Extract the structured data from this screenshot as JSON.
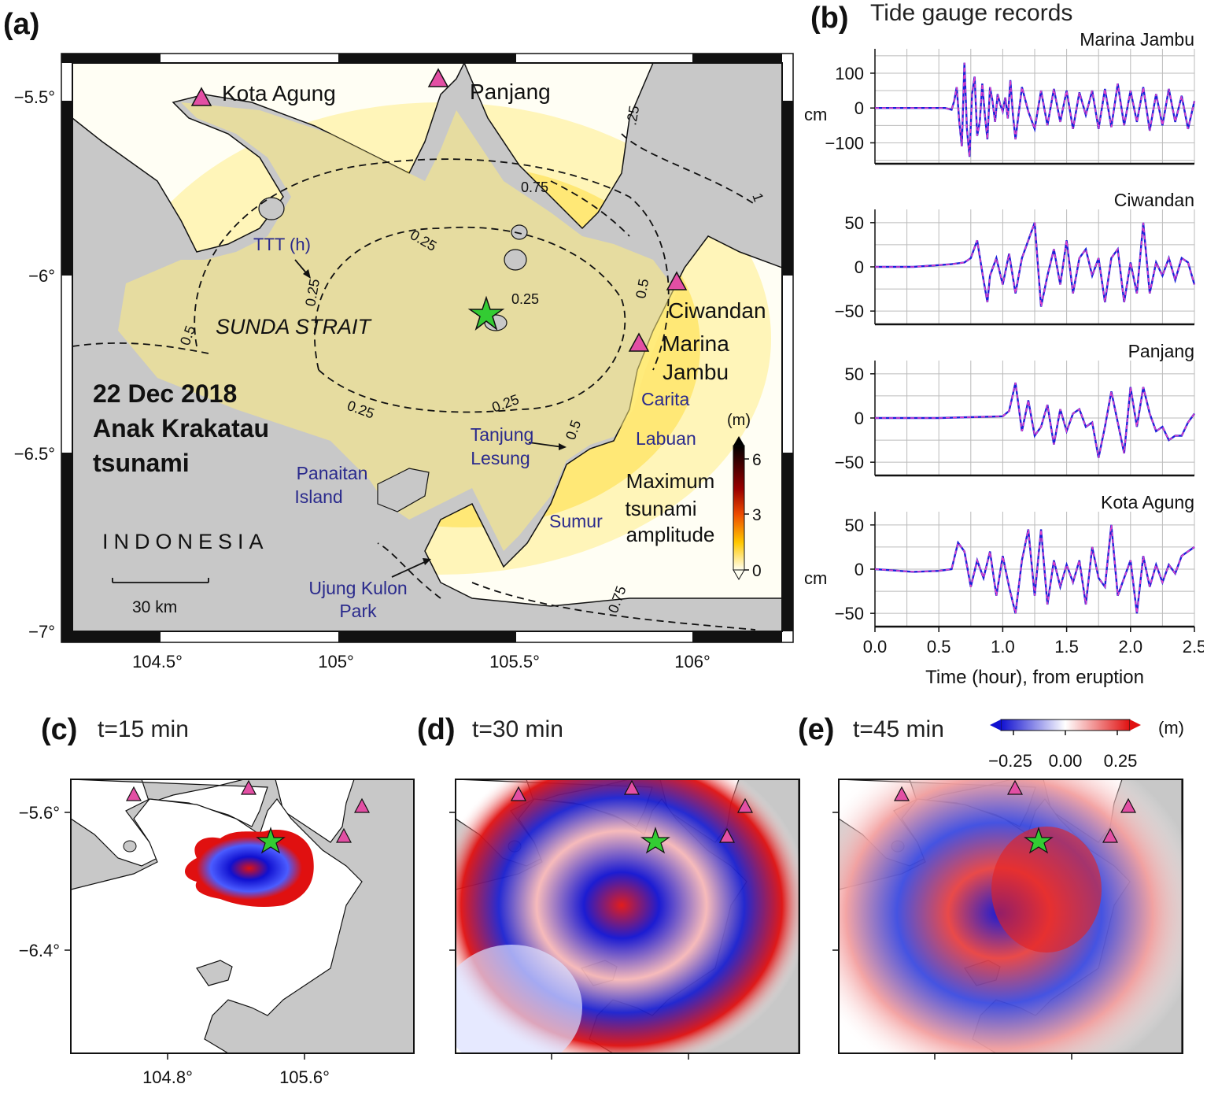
{
  "panel_a": {
    "label": "(a)",
    "title_lines": [
      "22 Dec 2018",
      "Anak Krakatau",
      "tsunami"
    ],
    "region": "SUNDA STRAIT",
    "country": "INDONESIA",
    "ttt_label": "TTT (h)",
    "scale_label": "30 km",
    "contours": [
      "0.25",
      "0.25",
      "0.25",
      "0.25",
      "0.25",
      "0.5",
      "0.5",
      "0.5",
      "0.75",
      "0.75",
      "1",
      ".25"
    ],
    "stations": [
      "Kota Agung",
      "Panjang",
      "Ciwandan",
      "Marina Jambu"
    ],
    "places": [
      "Carita",
      "Labuan",
      "Tanjung Lesung",
      "Panaitan Island",
      "Sumur",
      "Ujung Kulon Park"
    ],
    "colorbar_unit": "(m)",
    "colorbar_ticks": [
      "6",
      "3",
      "0"
    ],
    "colorbar_title": [
      "Maximum",
      "tsunami",
      "amplitude"
    ],
    "lat_ticks": [
      "−5.5°",
      "−6°",
      "−6.5°",
      "−7°"
    ],
    "lon_ticks": [
      "104.5°",
      "105°",
      "105.5°",
      "106°"
    ]
  },
  "panel_b": {
    "label": "(b)",
    "title": "Tide gauge records",
    "xlabel": "Time (hour), from eruption",
    "unit_label": "cm",
    "x_ticks": [
      "0.0",
      "0.5",
      "1.0",
      "1.5",
      "2.0",
      "2.5"
    ]
  },
  "panel_c": {
    "label": "(c)",
    "time": "t=15 min"
  },
  "panel_d": {
    "label": "(d)",
    "time": "t=30 min"
  },
  "panel_e": {
    "label": "(e)",
    "time": "t=45 min"
  },
  "snapshot_colorbar": {
    "unit": "(m)",
    "ticks": [
      "−0.25",
      "0.00",
      "0.25"
    ]
  },
  "snapshot_axes": {
    "lat_ticks": [
      "−5.6°",
      "−6.4°"
    ],
    "lon_ticks": [
      "104.8°",
      "105.6°"
    ]
  },
  "chart_data": {
    "type": "line",
    "title": "Tide gauge records",
    "xlabel": "Time (hour), from eruption",
    "ylabel": "cm",
    "xlim": [
      0,
      2.5
    ],
    "series_colors": {
      "observed": "#1a22d8",
      "simulated": "#e040c8"
    },
    "stations": [
      {
        "name": "Marina Jambu",
        "ylim": [
          -160,
          170
        ],
        "y_ticks": [
          "100",
          "0",
          "−100"
        ],
        "y_tick_values": [
          100,
          0,
          -100
        ],
        "x": [
          0,
          0.5,
          0.55,
          0.6,
          0.62,
          0.64,
          0.66,
          0.68,
          0.7,
          0.72,
          0.74,
          0.76,
          0.78,
          0.8,
          0.82,
          0.84,
          0.86,
          0.88,
          0.9,
          0.92,
          0.94,
          0.96,
          0.98,
          1.0,
          1.02,
          1.04,
          1.06,
          1.08,
          1.1,
          1.15,
          1.2,
          1.25,
          1.3,
          1.35,
          1.4,
          1.45,
          1.5,
          1.55,
          1.6,
          1.65,
          1.7,
          1.75,
          1.8,
          1.85,
          1.9,
          1.95,
          2.0,
          2.05,
          2.1,
          2.15,
          2.2,
          2.25,
          2.3,
          2.35,
          2.4,
          2.45,
          2.5
        ],
        "y": [
          0,
          0,
          0,
          -5,
          20,
          60,
          -40,
          -110,
          130,
          -60,
          -140,
          40,
          90,
          -80,
          -40,
          70,
          -20,
          -90,
          60,
          20,
          -40,
          40,
          10,
          -10,
          30,
          -30,
          80,
          -20,
          -90,
          60,
          -10,
          -60,
          50,
          -50,
          55,
          -40,
          50,
          -60,
          45,
          -20,
          50,
          -60,
          55,
          -55,
          70,
          -50,
          50,
          -40,
          60,
          -65,
          40,
          -50,
          55,
          -40,
          35,
          -60,
          20
        ]
      },
      {
        "name": "Ciwandan",
        "ylim": [
          -65,
          65
        ],
        "y_ticks": [
          "50",
          "0",
          "−50"
        ],
        "y_tick_values": [
          50,
          0,
          -50
        ],
        "x": [
          0,
          0.3,
          0.5,
          0.6,
          0.7,
          0.75,
          0.8,
          0.85,
          0.88,
          0.9,
          0.95,
          1.0,
          1.05,
          1.1,
          1.15,
          1.2,
          1.25,
          1.3,
          1.35,
          1.4,
          1.45,
          1.5,
          1.55,
          1.6,
          1.65,
          1.7,
          1.75,
          1.8,
          1.85,
          1.9,
          1.95,
          2.0,
          2.05,
          2.1,
          2.15,
          2.2,
          2.25,
          2.3,
          2.35,
          2.4,
          2.45,
          2.5
        ],
        "y": [
          0,
          0,
          2,
          3,
          5,
          10,
          30,
          -15,
          -40,
          -10,
          10,
          -20,
          15,
          -30,
          10,
          30,
          50,
          -45,
          -10,
          20,
          -20,
          30,
          -30,
          10,
          20,
          -10,
          10,
          -40,
          10,
          20,
          -40,
          5,
          -30,
          50,
          -30,
          5,
          -10,
          10,
          -15,
          10,
          5,
          -20
        ]
      },
      {
        "name": "Panjang",
        "ylim": [
          -65,
          65
        ],
        "y_ticks": [
          "50",
          "0",
          "−50"
        ],
        "y_tick_values": [
          50,
          0,
          -50
        ],
        "x": [
          0,
          0.5,
          1.0,
          1.05,
          1.1,
          1.15,
          1.2,
          1.25,
          1.3,
          1.35,
          1.4,
          1.45,
          1.5,
          1.55,
          1.6,
          1.65,
          1.7,
          1.75,
          1.8,
          1.85,
          1.9,
          1.95,
          2.0,
          2.05,
          2.1,
          2.15,
          2.2,
          2.25,
          2.3,
          2.35,
          2.4,
          2.45,
          2.5
        ],
        "y": [
          0,
          0,
          2,
          8,
          40,
          -15,
          20,
          -20,
          -10,
          15,
          -30,
          10,
          -15,
          5,
          10,
          -10,
          -5,
          -45,
          -10,
          30,
          -5,
          -40,
          35,
          -10,
          35,
          5,
          -15,
          -10,
          -25,
          -20,
          -20,
          -5,
          5
        ]
      },
      {
        "name": "Kota Agung",
        "ylim": [
          -65,
          65
        ],
        "y_ticks": [
          "50",
          "0",
          "−50"
        ],
        "y_tick_values": [
          50,
          0,
          -50
        ],
        "x": [
          0,
          0.3,
          0.5,
          0.6,
          0.65,
          0.7,
          0.75,
          0.8,
          0.85,
          0.9,
          0.95,
          1.0,
          1.05,
          1.1,
          1.15,
          1.2,
          1.25,
          1.3,
          1.35,
          1.4,
          1.45,
          1.5,
          1.55,
          1.6,
          1.65,
          1.7,
          1.75,
          1.8,
          1.85,
          1.9,
          1.95,
          2.0,
          2.05,
          2.1,
          2.15,
          2.2,
          2.25,
          2.3,
          2.35,
          2.4,
          2.45,
          2.5
        ],
        "y": [
          0,
          -3,
          -2,
          0,
          30,
          20,
          -20,
          10,
          -10,
          20,
          -30,
          15,
          -20,
          -50,
          10,
          45,
          -30,
          45,
          -40,
          10,
          -20,
          5,
          -15,
          10,
          -40,
          25,
          -10,
          -20,
          50,
          -30,
          -10,
          10,
          -50,
          15,
          -20,
          5,
          -15,
          5,
          -5,
          15,
          20,
          25
        ]
      }
    ]
  }
}
